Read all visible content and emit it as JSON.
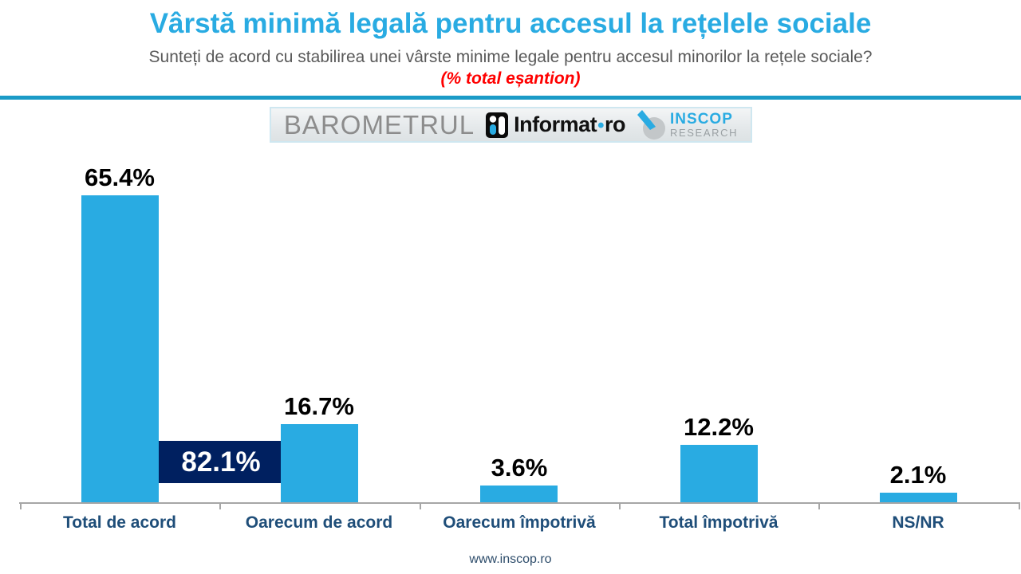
{
  "chart_data": {
    "type": "bar",
    "title": "Vârstă minimă legală pentru accesul la rețelele sociale",
    "subtitle": "Sunteți de acord cu stabilirea unei vârste minime legale pentru accesul minorilor la rețele sociale?",
    "unit_note": "(% total eșantion)",
    "categories": [
      "Total de acord",
      "Oarecum de acord",
      "Oarecum împotrivă",
      "Total împotrivă",
      "NS/NR"
    ],
    "values": [
      65.4,
      16.7,
      3.6,
      12.2,
      2.1
    ],
    "value_labels": [
      "65.4%",
      "16.7%",
      "3.6%",
      "12.2%",
      "2.1%"
    ],
    "overlay_label": "82.1%",
    "overlay_covers_categories": [
      0,
      1
    ],
    "xlabel": "",
    "ylabel": "",
    "ylim": [
      0,
      70
    ],
    "grid": false,
    "legend": false,
    "bar_color": "#29abe2",
    "overlay_color": "#002060",
    "value_label_color": "#000000",
    "category_label_color": "#1f4e79"
  },
  "branding": {
    "barometrul_label": "BAROMETRUL",
    "informat_name": "Informat",
    "informat_dot": "•",
    "informat_tld": "ro",
    "inscop_name": "INSCOP",
    "inscop_sub": "RESEARCH"
  },
  "footer": {
    "url": "www.inscop.ro"
  },
  "colors": {
    "title_blue": "#29abe2",
    "divider_blue": "#1b9bc7",
    "subtitle_gray": "#595959",
    "note_red": "#ff0000",
    "axis_gray": "#a6a6a6"
  }
}
